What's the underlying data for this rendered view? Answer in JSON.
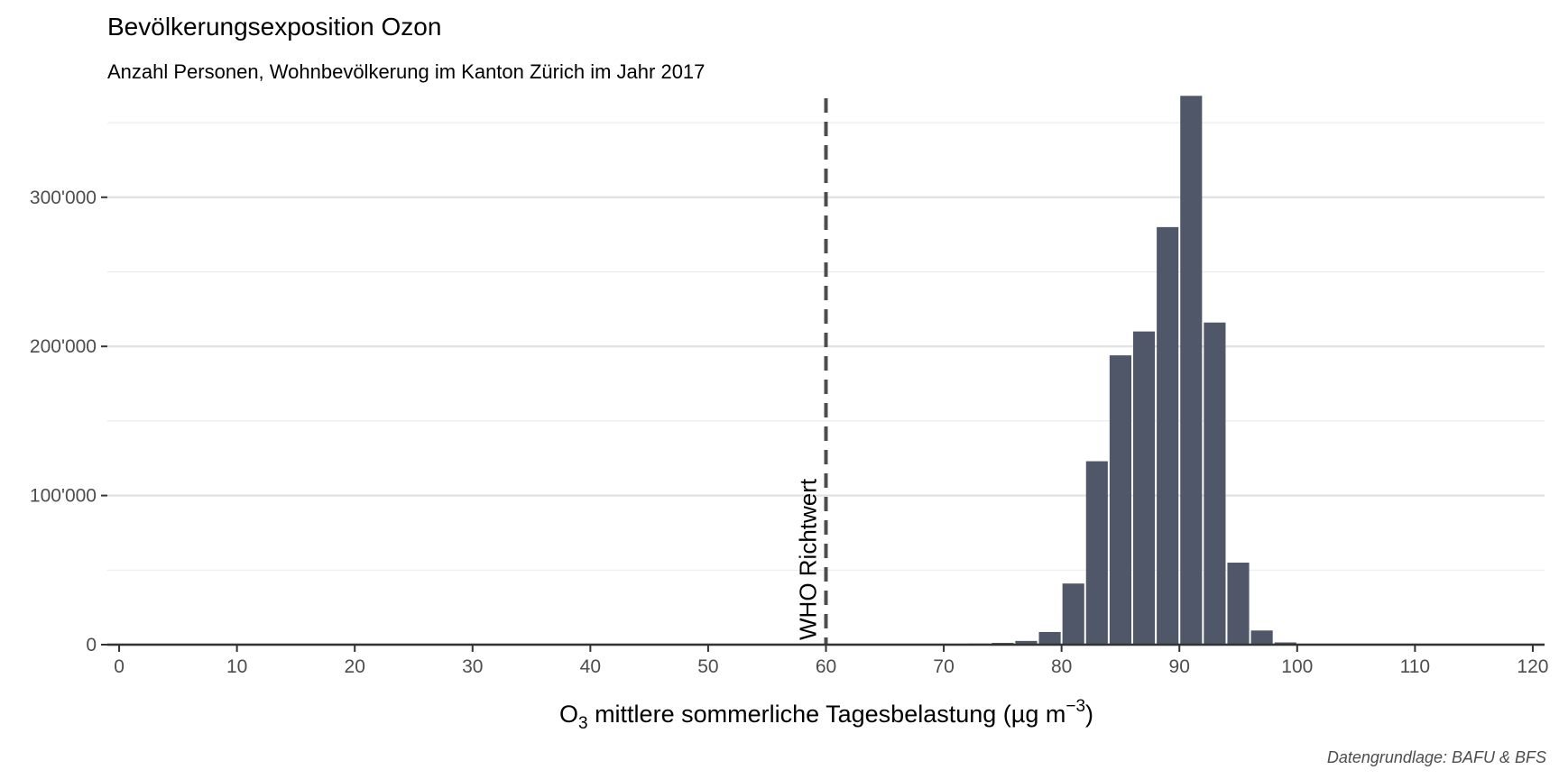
{
  "chart_data": {
    "type": "bar",
    "title": "Bevölkerungsexposition Ozon",
    "subtitle": "Anzahl Personen, Wohnbevölkerung im Kanton Zürich im Jahr 2017",
    "xlabel": {
      "prefix": "O",
      "subscript": "3",
      "main": " mittlere sommerliche Tagesbelastung (µg m",
      "superscript": "−3",
      "suffix": ")"
    },
    "caption": "Datengrundlage: BAFU & BFS",
    "xlim": [
      -1,
      121
    ],
    "ylim": [
      0,
      370000
    ],
    "bin_width": 2,
    "x_ticks": [
      0,
      10,
      20,
      30,
      40,
      50,
      60,
      70,
      80,
      90,
      100,
      110,
      120
    ],
    "x_tick_labels": [
      "0",
      "10",
      "20",
      "30",
      "40",
      "50",
      "60",
      "70",
      "80",
      "90",
      "100",
      "110",
      "120"
    ],
    "y_ticks": [
      0,
      100000,
      200000,
      300000
    ],
    "y_tick_labels": [
      "0",
      "100'000",
      "200'000",
      "300'000"
    ],
    "y_minor_gridlines": [
      50000,
      150000,
      250000,
      350000
    ],
    "grid": true,
    "bars": [
      {
        "x": 73,
        "value": 700
      },
      {
        "x": 75,
        "value": 1200
      },
      {
        "x": 77,
        "value": 2500
      },
      {
        "x": 79,
        "value": 8500
      },
      {
        "x": 81,
        "value": 41000
      },
      {
        "x": 83,
        "value": 123000
      },
      {
        "x": 85,
        "value": 194000
      },
      {
        "x": 87,
        "value": 210000
      },
      {
        "x": 89,
        "value": 280000
      },
      {
        "x": 91,
        "value": 368000
      },
      {
        "x": 93,
        "value": 216000
      },
      {
        "x": 95,
        "value": 55000
      },
      {
        "x": 97,
        "value": 9500
      },
      {
        "x": 99,
        "value": 1500
      }
    ],
    "bar_color": "#4f5769",
    "reference_line": {
      "x": 60,
      "label": "WHO Richtwert",
      "color": "#4d4d4d",
      "style": "dashed"
    }
  }
}
